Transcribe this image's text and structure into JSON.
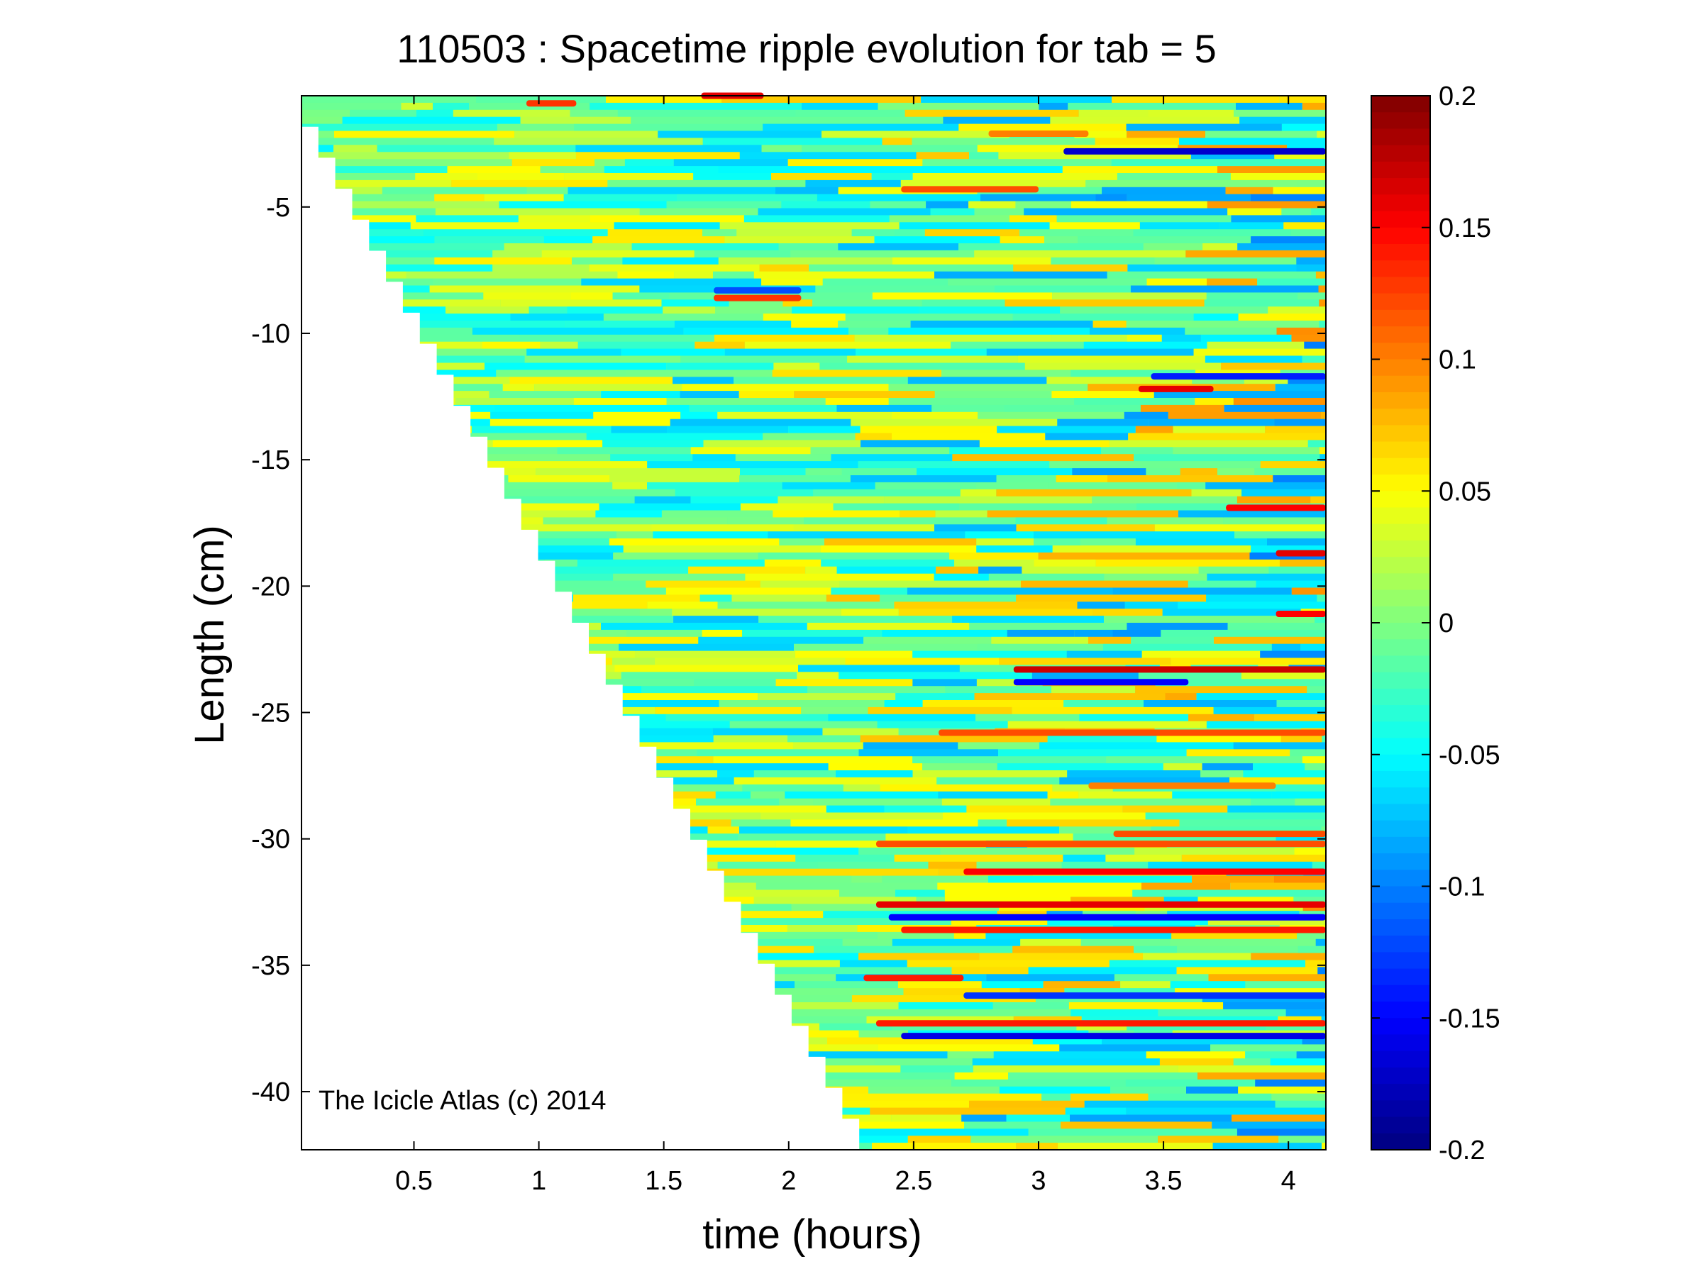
{
  "chart_data": {
    "type": "heatmap",
    "title": "110503 : Spacetime ripple evolution for tab = 5",
    "xlabel": "time (hours)",
    "ylabel": "Length (cm)",
    "watermark": "The Icicle Atlas (c) 2014",
    "xlim": [
      0.05,
      4.15
    ],
    "ylim": [
      -42.3,
      -0.6
    ],
    "xticks": [
      0.5,
      1,
      1.5,
      2,
      2.5,
      3,
      3.5,
      4
    ],
    "xtick_labels": [
      "0.5",
      "1",
      "1.5",
      "2",
      "2.5",
      "3",
      "3.5",
      "4"
    ],
    "yticks": [
      -5,
      -10,
      -15,
      -20,
      -25,
      -30,
      -35,
      -40
    ],
    "ytick_labels": [
      "-5",
      "-10",
      "-15",
      "-20",
      "-25",
      "-30",
      "-35",
      "-40"
    ],
    "colorbar": {
      "colormap": "jet",
      "clim": [
        -0.2,
        0.2
      ],
      "ticks": [
        0.2,
        0.15,
        0.1,
        0.05,
        0,
        -0.05,
        -0.1,
        -0.15,
        -0.2
      ],
      "tick_labels": [
        "0.2",
        "0.15",
        "0.1",
        "0.05",
        "0",
        "-0.05",
        "-0.1",
        "-0.15",
        "-0.2"
      ]
    },
    "data_boundary": {
      "description": "icicle tip position: length grows linearly with time; no data below the tip",
      "t_start": 0.05,
      "length_start": -0.6,
      "t_end": 2.35,
      "length_end": -42.3
    },
    "background_value": -0.01,
    "prominent_features": [
      {
        "length": -2.8,
        "t_start": 3.1,
        "t_end": 4.15,
        "value": -0.17
      },
      {
        "length": -2.1,
        "t_start": 2.8,
        "t_end": 3.2,
        "value": 0.1
      },
      {
        "length": -4.3,
        "t_start": 2.45,
        "t_end": 3.0,
        "value": 0.12
      },
      {
        "length": -8.6,
        "t_start": 1.7,
        "t_end": 2.05,
        "value": 0.13
      },
      {
        "length": -8.3,
        "t_start": 1.7,
        "t_end": 2.05,
        "value": -0.12
      },
      {
        "length": -12.2,
        "t_start": 3.4,
        "t_end": 3.7,
        "value": 0.16
      },
      {
        "length": -11.7,
        "t_start": 3.45,
        "t_end": 4.15,
        "value": -0.14
      },
      {
        "length": -16.9,
        "t_start": 3.75,
        "t_end": 4.15,
        "value": 0.15
      },
      {
        "length": -18.7,
        "t_start": 3.95,
        "t_end": 4.15,
        "value": 0.16
      },
      {
        "length": -21.1,
        "t_start": 3.95,
        "t_end": 4.15,
        "value": 0.15
      },
      {
        "length": -23.3,
        "t_start": 2.9,
        "t_end": 4.15,
        "value": 0.17
      },
      {
        "length": -23.8,
        "t_start": 2.9,
        "t_end": 3.6,
        "value": -0.15
      },
      {
        "length": -25.8,
        "t_start": 2.6,
        "t_end": 4.15,
        "value": 0.12
      },
      {
        "length": -27.9,
        "t_start": 3.2,
        "t_end": 3.95,
        "value": 0.1
      },
      {
        "length": -29.8,
        "t_start": 3.3,
        "t_end": 4.15,
        "value": 0.12
      },
      {
        "length": -30.2,
        "t_start": 2.35,
        "t_end": 4.15,
        "value": 0.12
      },
      {
        "length": -31.3,
        "t_start": 2.7,
        "t_end": 4.15,
        "value": 0.15
      },
      {
        "length": -32.6,
        "t_start": 2.35,
        "t_end": 4.15,
        "value": 0.16
      },
      {
        "length": -33.1,
        "t_start": 2.4,
        "t_end": 4.15,
        "value": -0.15
      },
      {
        "length": -33.6,
        "t_start": 2.45,
        "t_end": 4.15,
        "value": 0.14
      },
      {
        "length": -35.5,
        "t_start": 2.3,
        "t_end": 2.7,
        "value": 0.14
      },
      {
        "length": -36.2,
        "t_start": 2.7,
        "t_end": 4.15,
        "value": -0.13
      },
      {
        "length": -37.3,
        "t_start": 2.35,
        "t_end": 4.15,
        "value": 0.14
      },
      {
        "length": -37.8,
        "t_start": 2.45,
        "t_end": 4.15,
        "value": -0.16
      },
      {
        "length": -0.9,
        "t_start": 0.95,
        "t_end": 1.15,
        "value": 0.13
      },
      {
        "length": -0.6,
        "t_start": 1.65,
        "t_end": 1.9,
        "value": 0.16
      }
    ]
  }
}
